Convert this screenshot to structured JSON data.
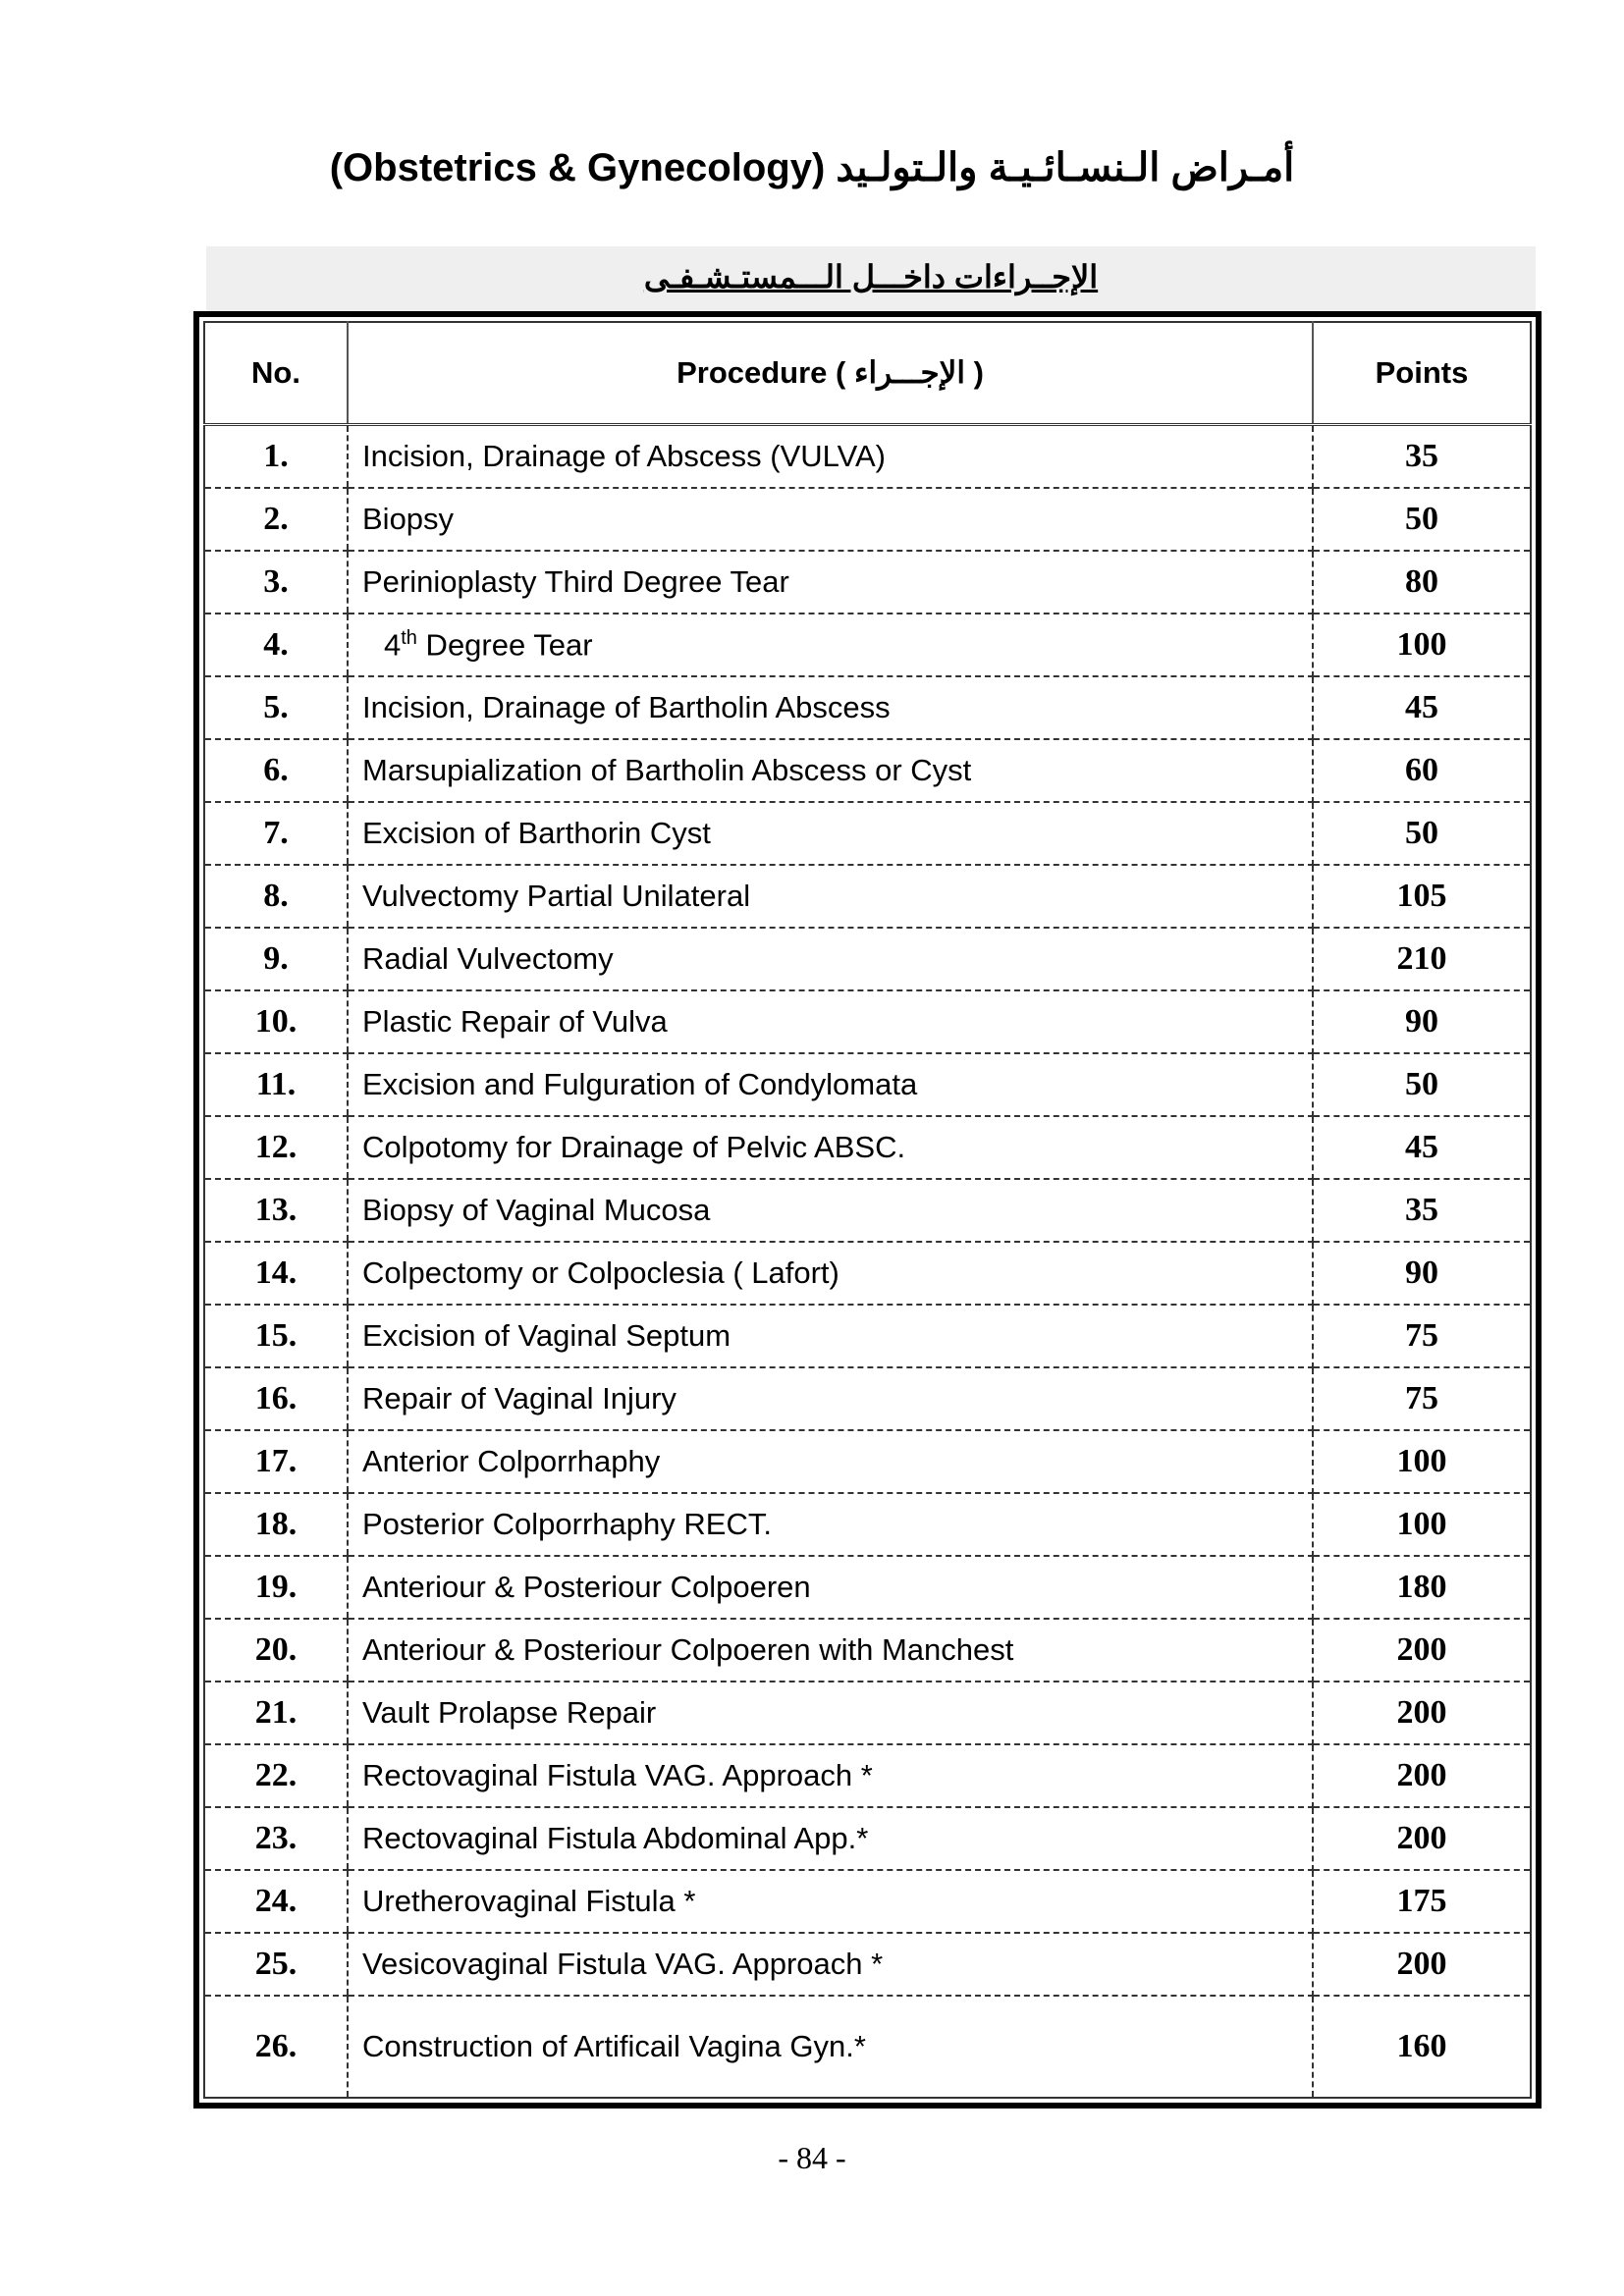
{
  "title": "(Obstetrics & Gynecology) أمـراض الـنسـائـيـة والـتولـيد",
  "section_heading": "الإجــراءات داخـــل الـــمستـشـفـى",
  "table": {
    "headers": {
      "no": "No.",
      "procedure": "Procedure   ( الإجـــراء )",
      "points": "Points"
    },
    "rows": [
      {
        "no": "1.",
        "procedure": "Incision, Drainage of Abscess (VULVA)",
        "points": "35"
      },
      {
        "no": "2.",
        "procedure": "Biopsy",
        "points": "50"
      },
      {
        "no": "3.",
        "procedure": "Perinioplasty Third Degree Tear",
        "points": "80"
      },
      {
        "no": "4.",
        "procedure": "4th Degree Tear",
        "points": "100"
      },
      {
        "no": "5.",
        "procedure": "Incision, Drainage of Bartholin Abscess",
        "points": "45"
      },
      {
        "no": "6.",
        "procedure": "Marsupialization of Bartholin Abscess or Cyst",
        "points": "60"
      },
      {
        "no": "7.",
        "procedure": "Excision of Barthorin Cyst",
        "points": "50"
      },
      {
        "no": "8.",
        "procedure": "Vulvectomy Partial Unilateral",
        "points": "105"
      },
      {
        "no": "9.",
        "procedure": "Radial Vulvectomy",
        "points": "210"
      },
      {
        "no": "10.",
        "procedure": "Plastic Repair of Vulva",
        "points": "90"
      },
      {
        "no": "11.",
        "procedure": "Excision and Fulguration of Condylomata",
        "points": "50"
      },
      {
        "no": "12.",
        "procedure": "Colpotomy for Drainage of Pelvic ABSC.",
        "points": "45"
      },
      {
        "no": "13.",
        "procedure": "Biopsy of Vaginal Mucosa",
        "points": "35"
      },
      {
        "no": "14.",
        "procedure": "Colpectomy or Colpoclesia ( Lafort)",
        "points": "90"
      },
      {
        "no": "15.",
        "procedure": "Excision of Vaginal Septum",
        "points": "75"
      },
      {
        "no": "16.",
        "procedure": "Repair of Vaginal Injury",
        "points": "75"
      },
      {
        "no": "17.",
        "procedure": "Anterior Colporrhaphy",
        "points": "100"
      },
      {
        "no": "18.",
        "procedure": "Posterior Colporrhaphy RECT.",
        "points": "100"
      },
      {
        "no": "19.",
        "procedure": "Anteriour & Posteriour Colpoeren",
        "points": "180"
      },
      {
        "no": "20.",
        "procedure": "Anteriour & Posteriour Colpoeren with Manchest",
        "points": "200"
      },
      {
        "no": "21.",
        "procedure": "Vault Prolapse Repair",
        "points": "200"
      },
      {
        "no": "22.",
        "procedure": "Rectovaginal Fistula VAG. Approach *",
        "points": "200"
      },
      {
        "no": "23.",
        "procedure": "Rectovaginal Fistula Abdominal App.*",
        "points": "200"
      },
      {
        "no": "24.",
        "procedure": "Uretherovaginal Fistula *",
        "points": "175"
      },
      {
        "no": "25.",
        "procedure": "Vesicovaginal Fistula VAG. Approach *",
        "points": "200"
      },
      {
        "no": "26.",
        "procedure": "Construction of Artificail Vagina Gyn.*",
        "points": "160"
      }
    ]
  },
  "page_number": "- 84 -"
}
